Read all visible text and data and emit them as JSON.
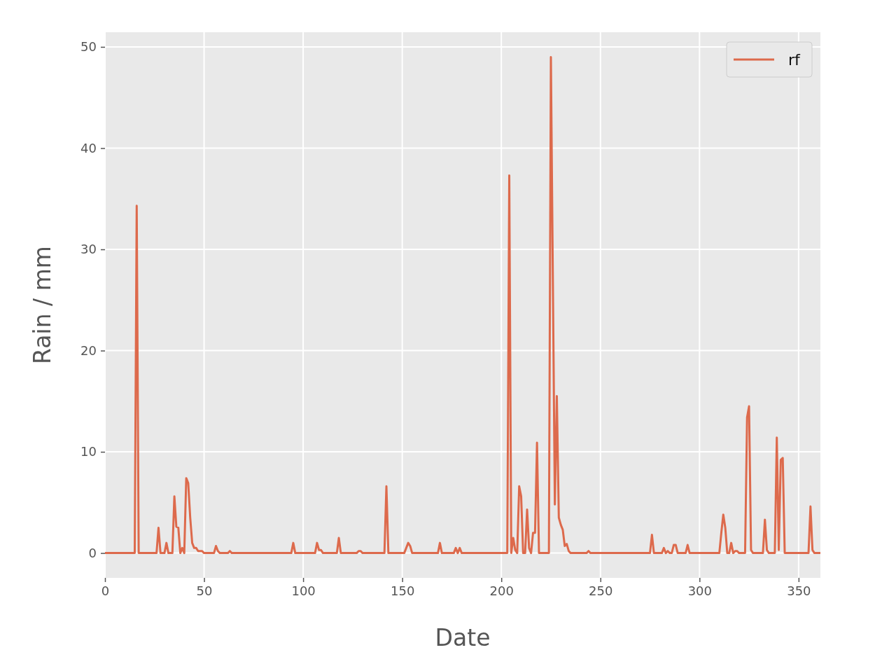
{
  "chart_data": {
    "type": "line",
    "xlabel": "Date",
    "ylabel": "Rain / mm",
    "xlim": [
      0,
      361
    ],
    "xticks": [
      0,
      50,
      100,
      150,
      200,
      250,
      300,
      350
    ],
    "ylim": [
      -2.45,
      51.45
    ],
    "yticks": [
      0,
      10,
      20,
      30,
      40,
      50
    ],
    "grid": true,
    "legend": "top right",
    "series": [
      {
        "name": "rf",
        "color": "#dd6a4c",
        "x": [
          0,
          15,
          16,
          17,
          26,
          27,
          28,
          30,
          31,
          32,
          33,
          34,
          35,
          36,
          37,
          38,
          39,
          40,
          41,
          42,
          43,
          44,
          45,
          46,
          47,
          49,
          50,
          55,
          56,
          57,
          58,
          62,
          63,
          64,
          94,
          95,
          96,
          106,
          107,
          108,
          109,
          110,
          117,
          118,
          119,
          127,
          128,
          129,
          130,
          141,
          142,
          143,
          151,
          152,
          153,
          154,
          155,
          168,
          169,
          170,
          176,
          177,
          178,
          179,
          180,
          203,
          204,
          205,
          206,
          207,
          208,
          209,
          210,
          211,
          212,
          213,
          214,
          215,
          216,
          217,
          218,
          219,
          224,
          225,
          227,
          228,
          229,
          230,
          231,
          232,
          233,
          234,
          235,
          243,
          244,
          245,
          275,
          276,
          277,
          281,
          282,
          283,
          284,
          285,
          286,
          287,
          288,
          289,
          293,
          294,
          295,
          310,
          311,
          312,
          313,
          314,
          315,
          316,
          317,
          318,
          319,
          320,
          322,
          323,
          324,
          325,
          326,
          327,
          332,
          333,
          334,
          335,
          338,
          339,
          340,
          341,
          342,
          343,
          355,
          356,
          357,
          358,
          361
        ],
        "values": [
          0,
          0,
          34.3,
          0,
          0,
          2.5,
          0,
          0,
          1.0,
          0,
          0,
          0,
          5.6,
          2.6,
          2.5,
          0,
          0.5,
          0,
          7.4,
          6.9,
          3.5,
          1.0,
          0.5,
          0.5,
          0.2,
          0.2,
          0,
          0,
          0.7,
          0.2,
          0,
          0,
          0.2,
          0,
          0,
          1.0,
          0,
          0,
          1.0,
          0.3,
          0.3,
          0,
          0,
          1.5,
          0,
          0,
          0.2,
          0.2,
          0,
          0,
          6.6,
          0,
          0,
          0.5,
          1.0,
          0.7,
          0,
          0,
          1.0,
          0,
          0,
          0.5,
          0,
          0.5,
          0,
          0,
          37.3,
          0,
          1.5,
          0.3,
          0,
          6.6,
          5.6,
          0,
          0,
          4.3,
          0.5,
          0,
          2.0,
          2.0,
          10.9,
          0,
          0,
          49.0,
          4.8,
          15.5,
          3.5,
          2.8,
          2.3,
          0.7,
          0.9,
          0.2,
          0,
          0,
          0.2,
          0,
          0,
          1.8,
          0,
          0,
          0.5,
          0,
          0.2,
          0,
          0,
          0.8,
          0.8,
          0,
          0,
          0.8,
          0,
          0,
          2.0,
          3.8,
          2.5,
          0,
          0,
          1.0,
          0,
          0.2,
          0.2,
          0,
          0,
          0,
          13.4,
          14.5,
          0.3,
          0,
          0,
          3.3,
          0.3,
          0,
          0,
          11.4,
          0.3,
          9.2,
          9.4,
          0,
          0,
          4.6,
          0.3,
          0,
          0
        ]
      }
    ]
  }
}
